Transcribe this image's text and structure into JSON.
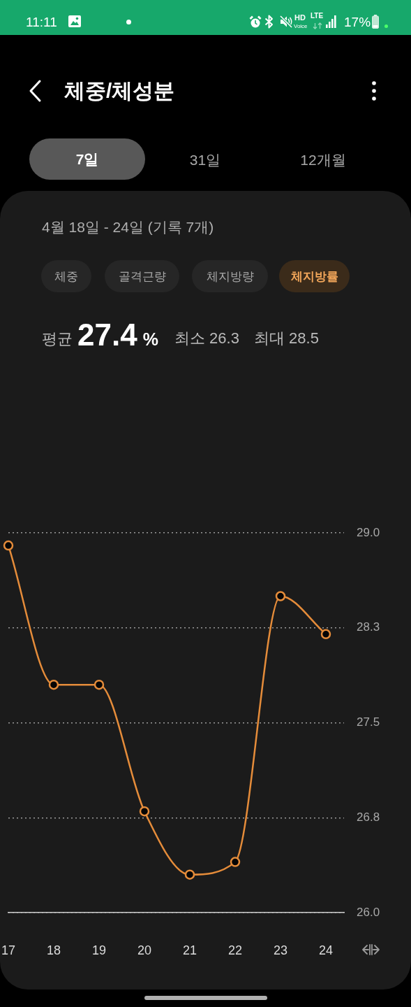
{
  "chart_data": {
    "type": "line",
    "title": "체중/체성분",
    "subtitle": "4월 18일 - 24일 (기록 7개)",
    "x": [
      17,
      18,
      19,
      20,
      21,
      22,
      23,
      24
    ],
    "values": [
      28.9,
      27.8,
      27.8,
      26.8,
      26.3,
      26.4,
      28.5,
      28.2
    ],
    "color": "#e58c3a",
    "xlim": [
      17,
      24.4
    ],
    "xticks": [
      17,
      18,
      19,
      20,
      21,
      22,
      23,
      24
    ],
    "ylim": [
      26,
      29
    ],
    "yticks": [
      {
        "value": 26,
        "label": "26.0"
      },
      {
        "value": 26.75,
        "label": "26.8"
      },
      27.5,
      {
        "value": 28.25,
        "label": "28.3"
      },
      {
        "value": 29,
        "label": "29.0"
      }
    ],
    "grid": "y",
    "marker": "circle",
    "line_style": "solid",
    "annotations": [
      "11:11",
      "HD",
      "Voice",
      "LTE",
      "17%",
      "7일",
      "31일",
      "12개월",
      "체중",
      "골격근량",
      "체지방량",
      "체지방률",
      "평균",
      "27.4",
      "%",
      "최소 26.3",
      "최대 28.5"
    ]
  }
}
